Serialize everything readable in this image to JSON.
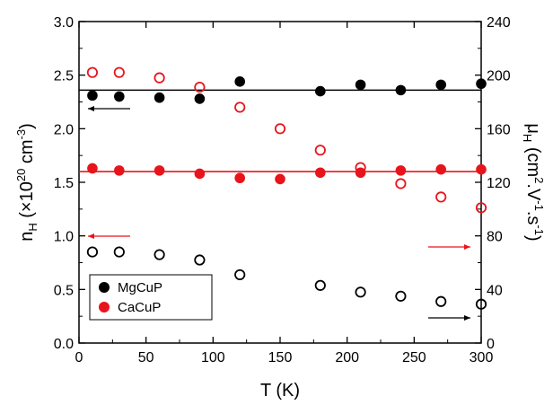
{
  "chart_data": {
    "type": "scatter",
    "x_axis": {
      "range": [
        0,
        300
      ],
      "ticks": [
        0,
        50,
        100,
        150,
        200,
        250,
        300
      ],
      "title": "T (K)"
    },
    "y_left_axis": {
      "range": [
        0.0,
        3.0
      ],
      "ticks": [
        "0.0",
        "0.5",
        "1.0",
        "1.5",
        "2.0",
        "2.5",
        "3.0"
      ],
      "title_main": "n",
      "title_sub": "H",
      "title_rest": " (×10",
      "title_sup": "20",
      "title_end": " cm",
      "title_sup2": "-3",
      "title_close": ")"
    },
    "y_right_axis": {
      "range": [
        0,
        240
      ],
      "ticks": [
        "0",
        "40",
        "80",
        "120",
        "160",
        "200",
        "240"
      ],
      "title_main": "μ",
      "title_sub": "H",
      "title_rest": " (cm",
      "title_sup": "2",
      "title_mid": ".V",
      "title_sup2": "-1",
      "title_mid2": ".s",
      "title_sup3": "-1",
      "title_close": ")"
    },
    "legend": {
      "placement": "bottom-left",
      "entries": [
        {
          "label": "MgCuP",
          "color": "#000000"
        },
        {
          "label": "CaCuP",
          "color": "#e8141b"
        }
      ]
    },
    "series": [
      {
        "name": "MgCuP",
        "quantity": "n_H",
        "axis": "left",
        "marker": "filled",
        "color": "#000000",
        "x": [
          10,
          30,
          60,
          90,
          120,
          180,
          210,
          240,
          270,
          300
        ],
        "y": [
          2.31,
          2.3,
          2.29,
          2.28,
          2.44,
          2.35,
          2.41,
          2.36,
          2.41,
          2.42
        ]
      },
      {
        "name": "CaCuP",
        "quantity": "n_H",
        "axis": "left",
        "marker": "filled",
        "color": "#e8141b",
        "x": [
          10,
          30,
          60,
          90,
          120,
          150,
          180,
          210,
          240,
          270,
          300
        ],
        "y": [
          1.63,
          1.61,
          1.61,
          1.58,
          1.54,
          1.53,
          1.59,
          1.59,
          1.61,
          1.62,
          1.62
        ]
      },
      {
        "name": "MgCuP",
        "quantity": "mu_H",
        "axis": "right",
        "marker": "open",
        "color": "#000000",
        "x": [
          10,
          30,
          60,
          90,
          120,
          180,
          210,
          240,
          270,
          300
        ],
        "y": [
          68,
          68,
          66,
          62,
          51,
          43,
          38,
          35,
          31,
          29
        ]
      },
      {
        "name": "CaCuP",
        "quantity": "mu_H",
        "axis": "right",
        "marker": "open",
        "color": "#e8141b",
        "x": [
          10,
          30,
          60,
          90,
          120,
          150,
          180,
          210,
          240,
          270,
          300
        ],
        "y": [
          202,
          202,
          198,
          191,
          176,
          160,
          144,
          131,
          119,
          109,
          101
        ]
      }
    ],
    "reference_lines": [
      {
        "series": "MgCuP",
        "axis": "left",
        "y": 2.36,
        "color": "#000000"
      },
      {
        "series": "CaCuP",
        "axis": "left",
        "y": 1.6,
        "color": "#e8141b"
      }
    ],
    "arrows": [
      {
        "color": "#000000",
        "direction": "left",
        "axis_indicated": "left"
      },
      {
        "color": "#e8141b",
        "direction": "left",
        "axis_indicated": "left"
      },
      {
        "color": "#e8141b",
        "direction": "right",
        "axis_indicated": "right"
      },
      {
        "color": "#000000",
        "direction": "right",
        "axis_indicated": "right"
      }
    ],
    "grid": false
  }
}
